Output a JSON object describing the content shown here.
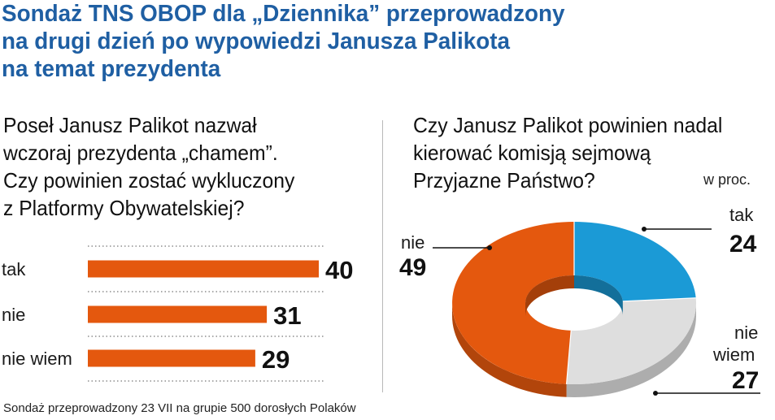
{
  "title_lines": [
    "Sondaż TNS OBOP dla „Dziennika” przeprowadzony",
    "na drugi dzień po wypowiedzi Janusza Palikota",
    "na temat prezydenta"
  ],
  "question_left_lines": [
    "Poseł Janusz Palikot nazwał",
    "wczoraj prezydenta „chamem”.",
    "Czy powinien zostać wykluczony",
    "z Platformy Obywatelskiej?"
  ],
  "question_right_lines": [
    "Czy Janusz Palikot powinien nadal",
    "kierować komisją sejmową",
    "Przyjazne Państwo?"
  ],
  "unit_label": "w proc.",
  "footer": "Sondaż przeprowadzony 23 VII na grupie 500 dorosłych Polaków",
  "colors": {
    "title": "#1f5fa3",
    "bar": "#e4580e",
    "pie_nie": "#e4580e",
    "pie_tak": "#1b9ad6",
    "pie_nie_wiem": "#dedede"
  },
  "chart_data": [
    {
      "type": "bar",
      "orientation": "horizontal",
      "categories": [
        "tak",
        "nie",
        "nie wiem"
      ],
      "values": [
        40,
        31,
        29
      ],
      "unit": "w proc.",
      "grid": "dotted separators"
    },
    {
      "type": "pie",
      "style": "donut",
      "categories": [
        "tak",
        "nie wiem",
        "nie"
      ],
      "labels_display": [
        "tak",
        "nie\nwiem",
        "nie"
      ],
      "values": [
        24,
        27,
        49
      ],
      "unit": "w proc."
    }
  ]
}
